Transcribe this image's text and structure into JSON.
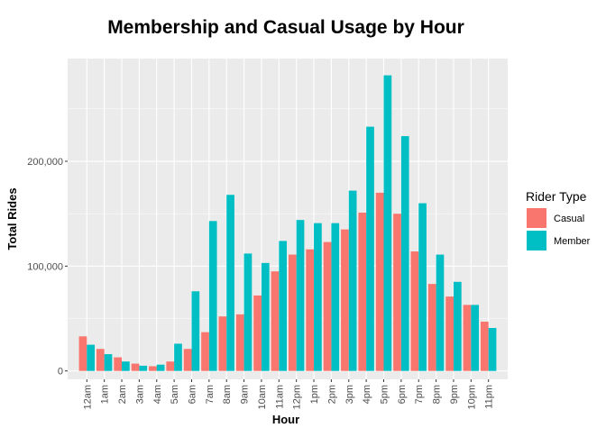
{
  "chart_data": {
    "type": "bar",
    "title": "Membership and Casual Usage by Hour",
    "xlabel": "Hour",
    "ylabel": "Total Rides",
    "categories": [
      "12am",
      "1am",
      "2am",
      "3am",
      "4am",
      "5am",
      "6am",
      "7am",
      "8am",
      "9am",
      "10am",
      "11am",
      "12pm",
      "1pm",
      "2pm",
      "3pm",
      "4pm",
      "5pm",
      "6pm",
      "7pm",
      "8pm",
      "9pm",
      "10pm",
      "11pm"
    ],
    "series": [
      {
        "name": "Casual",
        "color": "#F8766D",
        "values": [
          33000,
          21000,
          13000,
          7000,
          4500,
          9000,
          21000,
          37000,
          52000,
          54000,
          72000,
          95000,
          111000,
          116000,
          123000,
          135000,
          151000,
          170000,
          150000,
          114000,
          83000,
          71000,
          63000,
          47000
        ]
      },
      {
        "name": "Member",
        "color": "#00BFC4",
        "values": [
          25000,
          16000,
          9000,
          5000,
          6000,
          26000,
          76000,
          143000,
          168000,
          112000,
          103000,
          124000,
          144000,
          141000,
          141000,
          172000,
          233000,
          282000,
          224000,
          160000,
          111000,
          85000,
          63000,
          41000
        ]
      }
    ],
    "ylim": [
      -8000,
      298000
    ],
    "yticks": [
      0,
      100000,
      200000
    ],
    "ytick_labels": [
      "0",
      "100,000",
      "200,000"
    ],
    "grid": true,
    "legend_title": "Rider Type",
    "legend_position": "right",
    "x_tick_rotation": "vertical"
  }
}
